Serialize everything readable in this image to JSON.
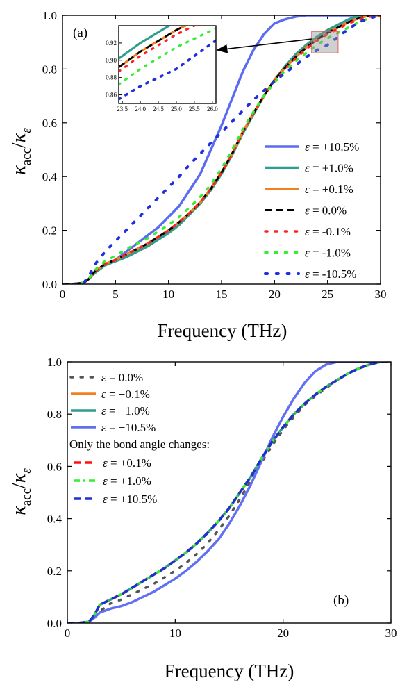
{
  "figure": {
    "panels": [
      "(a)",
      "(b)"
    ],
    "x_label": "Frequency (THz)",
    "y_label_base": "κ",
    "y_label_num_sub": "acc",
    "y_label_den_sub": "ε",
    "legend_a_symbol": "ε",
    "legend_b_note": "Only the bond angle changes:"
  },
  "chart_data": [
    {
      "type": "line",
      "panel": "(a)",
      "xlabel": "Frequency (THz)",
      "ylabel": "κacc/κε",
      "xlim": [
        0,
        30
      ],
      "ylim": [
        0,
        1
      ],
      "xticks": [
        0,
        5,
        10,
        15,
        20,
        25,
        30
      ],
      "yticks": [
        0.0,
        0.2,
        0.4,
        0.6,
        0.8,
        1.0
      ],
      "legend_placement": "bottom-right",
      "series": [
        {
          "name": "= +10.5%",
          "color": "#5b6cf0",
          "style": "solid",
          "width": 3.5,
          "x": [
            0,
            1,
            2,
            2.5,
            3,
            4,
            5,
            6,
            7,
            8,
            9,
            10,
            11,
            12,
            13,
            14,
            15,
            16,
            17,
            18,
            19,
            20,
            21,
            22,
            23,
            24,
            25,
            26,
            30
          ],
          "y": [
            0,
            0,
            0.005,
            0.02,
            0.04,
            0.07,
            0.09,
            0.12,
            0.15,
            0.18,
            0.21,
            0.25,
            0.29,
            0.35,
            0.41,
            0.5,
            0.59,
            0.69,
            0.79,
            0.87,
            0.93,
            0.97,
            0.985,
            0.995,
            1.0,
            1.0,
            1.0,
            1.0,
            1.0
          ]
        },
        {
          "name": "= +1.0%",
          "color": "#2e9e8f",
          "style": "solid",
          "width": 3.5,
          "x": [
            0,
            1,
            2,
            2.5,
            3,
            4,
            5,
            6,
            7,
            8,
            9,
            10,
            11,
            12,
            13,
            14,
            15,
            16,
            17,
            18,
            19,
            20,
            21,
            22,
            23,
            24,
            25,
            26,
            27,
            28,
            29,
            30
          ],
          "y": [
            0,
            0,
            0.005,
            0.02,
            0.04,
            0.07,
            0.085,
            0.1,
            0.12,
            0.14,
            0.165,
            0.19,
            0.22,
            0.26,
            0.3,
            0.35,
            0.41,
            0.48,
            0.56,
            0.63,
            0.7,
            0.76,
            0.81,
            0.855,
            0.89,
            0.92,
            0.945,
            0.965,
            0.985,
            1.0,
            1.0,
            1.0
          ]
        },
        {
          "name": "= +0.1%",
          "color": "#f08020",
          "style": "solid",
          "width": 3.5,
          "x": [
            0,
            1,
            2,
            2.5,
            3,
            4,
            5,
            6,
            7,
            8,
            9,
            10,
            11,
            12,
            13,
            14,
            15,
            16,
            17,
            18,
            19,
            20,
            21,
            22,
            23,
            24,
            25,
            26,
            27,
            28,
            29,
            30
          ],
          "y": [
            0,
            0,
            0.005,
            0.02,
            0.045,
            0.075,
            0.09,
            0.11,
            0.13,
            0.15,
            0.175,
            0.2,
            0.23,
            0.265,
            0.305,
            0.355,
            0.415,
            0.485,
            0.565,
            0.635,
            0.7,
            0.76,
            0.805,
            0.845,
            0.88,
            0.91,
            0.935,
            0.955,
            0.975,
            0.99,
            1.0,
            1.0
          ]
        },
        {
          "name": "= 0.0%",
          "color": "#000000",
          "style": "dash",
          "width": 3,
          "x": [
            0,
            1,
            2,
            2.5,
            3,
            4,
            5,
            6,
            7,
            8,
            9,
            10,
            11,
            12,
            13,
            14,
            15,
            16,
            17,
            18,
            19,
            20,
            21,
            22,
            23,
            24,
            25,
            26,
            27,
            28,
            29,
            30
          ],
          "y": [
            0,
            0,
            0.005,
            0.02,
            0.045,
            0.075,
            0.09,
            0.11,
            0.13,
            0.15,
            0.175,
            0.2,
            0.23,
            0.265,
            0.305,
            0.355,
            0.415,
            0.485,
            0.565,
            0.635,
            0.7,
            0.76,
            0.805,
            0.845,
            0.88,
            0.91,
            0.935,
            0.955,
            0.975,
            0.99,
            1.0,
            1.0
          ]
        },
        {
          "name": "= -0.1%",
          "color": "#ff2020",
          "style": "dot",
          "width": 3.5,
          "x": [
            0,
            1,
            2,
            2.5,
            3,
            4,
            5,
            6,
            7,
            8,
            9,
            10,
            11,
            12,
            13,
            14,
            15,
            16,
            17,
            18,
            19,
            20,
            21,
            22,
            23,
            24,
            25,
            26,
            27,
            28,
            29,
            30
          ],
          "y": [
            0,
            0,
            0.005,
            0.02,
            0.045,
            0.075,
            0.09,
            0.11,
            0.13,
            0.15,
            0.175,
            0.2,
            0.23,
            0.265,
            0.305,
            0.355,
            0.415,
            0.485,
            0.565,
            0.635,
            0.7,
            0.755,
            0.8,
            0.84,
            0.875,
            0.905,
            0.93,
            0.95,
            0.97,
            0.985,
            0.995,
            1.0
          ]
        },
        {
          "name": "= -1.0%",
          "color": "#33ee33",
          "style": "dot",
          "width": 3.5,
          "x": [
            0,
            1,
            2,
            2.5,
            3,
            4,
            5,
            6,
            7,
            8,
            9,
            10,
            11,
            12,
            13,
            14,
            15,
            16,
            17,
            18,
            19,
            20,
            21,
            22,
            23,
            24,
            25,
            26,
            27,
            28,
            29,
            30
          ],
          "y": [
            0,
            0,
            0.005,
            0.02,
            0.05,
            0.085,
            0.105,
            0.13,
            0.15,
            0.17,
            0.195,
            0.22,
            0.25,
            0.285,
            0.325,
            0.37,
            0.43,
            0.5,
            0.575,
            0.64,
            0.7,
            0.75,
            0.795,
            0.83,
            0.86,
            0.89,
            0.915,
            0.935,
            0.955,
            0.975,
            0.99,
            1.0
          ]
        },
        {
          "name": "= -10.5%",
          "color": "#2030e0",
          "style": "dot",
          "width": 4,
          "x": [
            0,
            1,
            2,
            2.5,
            3,
            4,
            5,
            6,
            7,
            8,
            9,
            10,
            11,
            12,
            13,
            14,
            15,
            16,
            17,
            18,
            19,
            20,
            21,
            22,
            23,
            24,
            25,
            26,
            27,
            28,
            29,
            30
          ],
          "y": [
            0,
            0,
            0.005,
            0.03,
            0.07,
            0.12,
            0.16,
            0.2,
            0.24,
            0.28,
            0.32,
            0.36,
            0.4,
            0.445,
            0.485,
            0.525,
            0.565,
            0.605,
            0.645,
            0.685,
            0.72,
            0.755,
            0.785,
            0.815,
            0.845,
            0.87,
            0.89,
            0.92,
            0.95,
            0.975,
            0.99,
            1.0
          ]
        }
      ],
      "inset": {
        "xlim": [
          23.4,
          26.1
        ],
        "ylim": [
          0.85,
          0.94
        ],
        "xticks": [
          23.5,
          24.0,
          24.5,
          25.0,
          25.5,
          26.0
        ],
        "yticks": [
          0.86,
          0.88,
          0.9,
          0.92
        ],
        "xtick_labels": [
          "23.5",
          "24.0",
          "24.5",
          "25.0",
          "25.5",
          "26.0"
        ],
        "ytick_labels": [
          "0.86",
          "0.88",
          "0.90",
          "0.92"
        ],
        "zoom_box": {
          "x": [
            23.5,
            26.0
          ],
          "y": [
            0.86,
            0.94
          ]
        }
      }
    },
    {
      "type": "line",
      "panel": "(b)",
      "xlabel": "Frequency (THz)",
      "ylabel": "κacc/κε",
      "xlim": [
        0,
        30
      ],
      "ylim": [
        0,
        1
      ],
      "xticks": [
        0,
        10,
        20,
        30
      ],
      "yticks": [
        0.0,
        0.2,
        0.4,
        0.6,
        0.8,
        1.0
      ],
      "legend_placement": "top-left",
      "series": [
        {
          "name": "= 0.0%",
          "color": "#555555",
          "style": "dot",
          "width": 3.5,
          "group": "main",
          "x": [
            0,
            1,
            2,
            2.5,
            3,
            4,
            5,
            6,
            7,
            8,
            9,
            10,
            11,
            12,
            13,
            14,
            15,
            16,
            17,
            18,
            19,
            20,
            21,
            22,
            23,
            24,
            25,
            26,
            27,
            28,
            29,
            30
          ],
          "y": [
            0,
            0,
            0.005,
            0.02,
            0.045,
            0.075,
            0.09,
            0.11,
            0.13,
            0.15,
            0.175,
            0.2,
            0.23,
            0.265,
            0.305,
            0.355,
            0.41,
            0.475,
            0.545,
            0.615,
            0.68,
            0.74,
            0.79,
            0.835,
            0.87,
            0.9,
            0.93,
            0.955,
            0.975,
            0.99,
            1.0,
            1.0
          ]
        },
        {
          "name": "= +0.1%",
          "color": "#f08020",
          "style": "solid",
          "width": 3.5,
          "group": "main",
          "x": [
            0,
            1,
            2,
            2.5,
            3,
            4,
            5,
            6,
            7,
            8,
            9,
            10,
            11,
            12,
            13,
            14,
            15,
            16,
            17,
            18,
            19,
            20,
            21,
            22,
            23,
            24,
            25,
            26,
            27,
            28,
            29,
            30
          ],
          "y": [
            0,
            0,
            0.005,
            0.03,
            0.07,
            0.09,
            0.11,
            0.135,
            0.16,
            0.185,
            0.21,
            0.24,
            0.27,
            0.305,
            0.345,
            0.39,
            0.44,
            0.5,
            0.56,
            0.63,
            0.695,
            0.75,
            0.8,
            0.84,
            0.875,
            0.905,
            0.93,
            0.955,
            0.975,
            0.99,
            1.0,
            1.0
          ]
        },
        {
          "name": "= +1.0%",
          "color": "#2e9e8f",
          "style": "solid",
          "width": 3.5,
          "group": "main",
          "x": [
            0,
            1,
            2,
            2.5,
            3,
            4,
            5,
            6,
            7,
            8,
            9,
            10,
            11,
            12,
            13,
            14,
            15,
            16,
            17,
            18,
            19,
            20,
            21,
            22,
            23,
            24,
            25,
            26,
            27,
            28,
            29,
            30
          ],
          "y": [
            0,
            0,
            0.005,
            0.03,
            0.07,
            0.09,
            0.11,
            0.135,
            0.16,
            0.185,
            0.21,
            0.24,
            0.27,
            0.305,
            0.345,
            0.39,
            0.44,
            0.5,
            0.56,
            0.63,
            0.695,
            0.75,
            0.8,
            0.84,
            0.875,
            0.905,
            0.93,
            0.955,
            0.975,
            0.99,
            1.0,
            1.0
          ]
        },
        {
          "name": "= +10.5%",
          "color": "#6070f0",
          "style": "solid",
          "width": 3.5,
          "group": "main",
          "x": [
            0,
            1,
            2,
            2.5,
            3,
            4,
            5,
            6,
            7,
            8,
            9,
            10,
            11,
            12,
            13,
            14,
            15,
            16,
            17,
            18,
            19,
            20,
            21,
            22,
            23,
            24,
            25,
            26,
            27,
            28,
            29,
            30
          ],
          "y": [
            0,
            0,
            0.005,
            0.02,
            0.04,
            0.055,
            0.065,
            0.08,
            0.1,
            0.12,
            0.145,
            0.17,
            0.2,
            0.235,
            0.275,
            0.32,
            0.38,
            0.45,
            0.53,
            0.62,
            0.71,
            0.79,
            0.86,
            0.92,
            0.965,
            0.99,
            1.0,
            1.0,
            1.0,
            1.0,
            1.0,
            1.0
          ]
        },
        {
          "name": "= +0.1%",
          "color": "#ff1010",
          "style": "dash",
          "width": 3.5,
          "group": "bond",
          "x": [
            0,
            1,
            2,
            2.5,
            3,
            4,
            5,
            6,
            7,
            8,
            9,
            10,
            11,
            12,
            13,
            14,
            15,
            16,
            17,
            18,
            19,
            20,
            21,
            22,
            23,
            24,
            25,
            26,
            27,
            28,
            29,
            30
          ],
          "y": [
            0,
            0,
            0.005,
            0.03,
            0.07,
            0.09,
            0.11,
            0.135,
            0.16,
            0.185,
            0.21,
            0.24,
            0.27,
            0.305,
            0.345,
            0.39,
            0.44,
            0.5,
            0.56,
            0.63,
            0.695,
            0.75,
            0.8,
            0.84,
            0.875,
            0.905,
            0.93,
            0.955,
            0.975,
            0.99,
            1.0,
            1.0
          ]
        },
        {
          "name": "= +1.0%",
          "color": "#33ee33",
          "style": "dashdot",
          "width": 3.5,
          "group": "bond",
          "x": [
            0,
            1,
            2,
            2.5,
            3,
            4,
            5,
            6,
            7,
            8,
            9,
            10,
            11,
            12,
            13,
            14,
            15,
            16,
            17,
            18,
            19,
            20,
            21,
            22,
            23,
            24,
            25,
            26,
            27,
            28,
            29,
            30
          ],
          "y": [
            0,
            0,
            0.005,
            0.03,
            0.07,
            0.09,
            0.11,
            0.135,
            0.16,
            0.185,
            0.21,
            0.24,
            0.27,
            0.305,
            0.345,
            0.39,
            0.44,
            0.5,
            0.56,
            0.63,
            0.695,
            0.75,
            0.8,
            0.84,
            0.875,
            0.905,
            0.93,
            0.955,
            0.975,
            0.99,
            1.0,
            1.0
          ]
        },
        {
          "name": "= +10.5%",
          "color": "#2030d0",
          "style": "dash",
          "width": 3.5,
          "group": "bond",
          "x": [
            0,
            1,
            2,
            2.5,
            3,
            4,
            5,
            6,
            7,
            8,
            9,
            10,
            11,
            12,
            13,
            14,
            15,
            16,
            17,
            18,
            19,
            20,
            21,
            22,
            23,
            24,
            25,
            26,
            27,
            28,
            29,
            30
          ],
          "y": [
            0,
            0,
            0.005,
            0.03,
            0.07,
            0.09,
            0.11,
            0.135,
            0.16,
            0.185,
            0.21,
            0.24,
            0.27,
            0.305,
            0.345,
            0.39,
            0.44,
            0.5,
            0.56,
            0.63,
            0.695,
            0.75,
            0.8,
            0.84,
            0.875,
            0.905,
            0.93,
            0.955,
            0.975,
            0.99,
            1.0,
            1.0
          ]
        }
      ]
    }
  ]
}
